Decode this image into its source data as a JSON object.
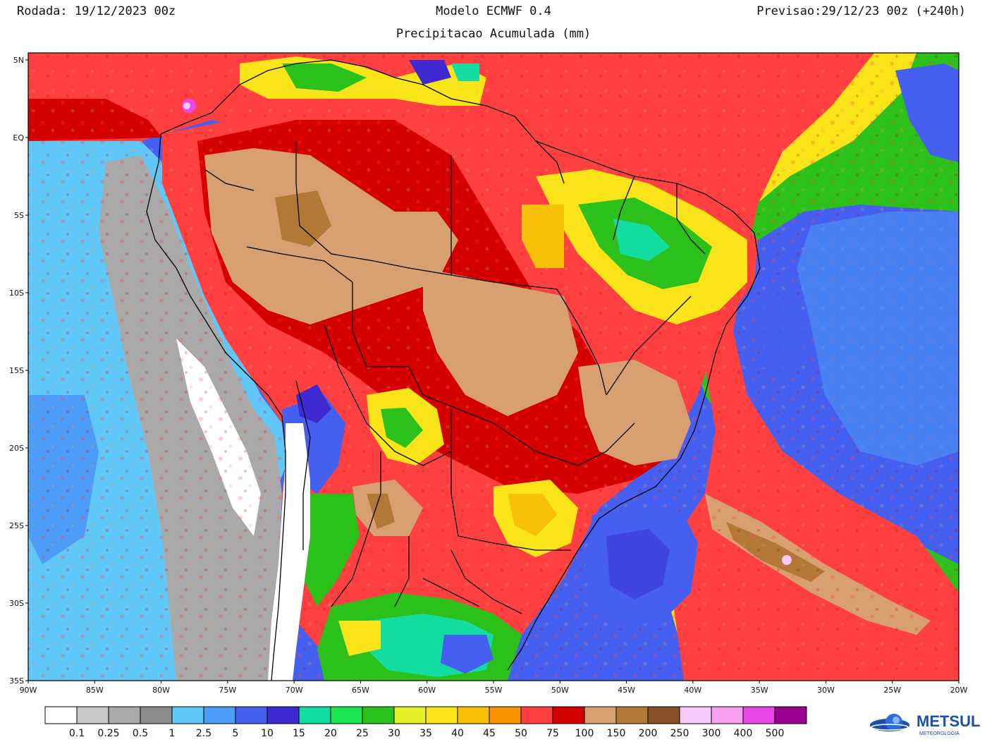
{
  "header": {
    "run": "Rodada: 19/12/2023 00z",
    "model": "Modelo ECMWF 0.4",
    "forecast": "Previsao:29/12/23 00z (+240h)",
    "subtitle": "Precipitacao Acumulada (mm)"
  },
  "map": {
    "lat_ticks": [
      "5N",
      "EQ",
      "5S",
      "10S",
      "15S",
      "20S",
      "25S",
      "30S",
      "35S"
    ],
    "lon_ticks": [
      "90W",
      "85W",
      "80W",
      "75W",
      "70W",
      "65W",
      "60W",
      "55W",
      "50W",
      "45W",
      "40W",
      "35W",
      "30W",
      "25W",
      "20W"
    ],
    "extent": {
      "lon": [
        -90,
        -20
      ],
      "lat": [
        -35,
        6
      ]
    }
  },
  "legend": {
    "colors": [
      "#ffffff",
      "#c8c8c8",
      "#a9a9a9",
      "#8c8c8c",
      "#5fc8f8",
      "#4c9cf8",
      "#4560f0",
      "#3e2ad0",
      "#13dca0",
      "#1be650",
      "#2cc01a",
      "#e6f02a",
      "#f8e418",
      "#f8c008",
      "#fa9200",
      "#ff4040",
      "#d40000",
      "#d8a070",
      "#b27836",
      "#885026",
      "#f8c8f8",
      "#f8a0f0",
      "#e848e8",
      "#9a0090"
    ],
    "labels": [
      "0.1",
      "0.25",
      "0.5",
      "1",
      "2.5",
      "5",
      "10",
      "15",
      "20",
      "25",
      "30",
      "35",
      "40",
      "45",
      "50",
      "75",
      "100",
      "150",
      "200",
      "250",
      "300",
      "400",
      "500"
    ]
  },
  "logo": {
    "name": "METSUL",
    "tagline": "METEOROLOGIA"
  }
}
